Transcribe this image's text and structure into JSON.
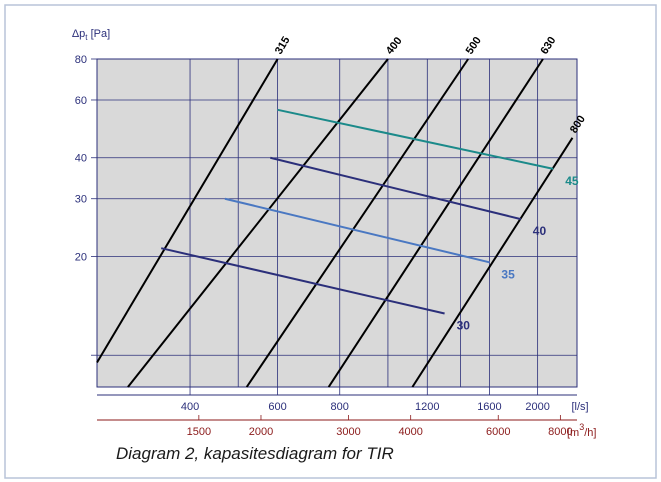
{
  "chart_data": {
    "type": "line",
    "caption": "Diagram 2, kapasitesdiagram for TIR",
    "ylabel": "Δp",
    "ylabel_sub": "t",
    "ylabel_unit": "[Pa]",
    "y_scale": "log",
    "ylim": [
      8,
      80
    ],
    "y_ticks": [
      20,
      30,
      40,
      60,
      80
    ],
    "x_scale": "log",
    "xlim": [
      260,
      2400
    ],
    "x_ticks": [
      400,
      600,
      800,
      1200,
      1600,
      2000
    ],
    "x_unit": "[l/s]",
    "x2_ticks": [
      1500,
      2000,
      3000,
      4000,
      6000,
      8000
    ],
    "x2_unit_prefix": "[m",
    "x2_unit_sup": "3",
    "x2_unit_suffix": "/h]",
    "grid": true,
    "duct_series": [
      {
        "name": "315",
        "points": [
          [
            260,
            9.5
          ],
          [
            600,
            80
          ]
        ]
      },
      {
        "name": "400",
        "points": [
          [
            300,
            8
          ],
          [
            1000,
            80
          ]
        ]
      },
      {
        "name": "500",
        "points": [
          [
            520,
            8
          ],
          [
            1450,
            80
          ]
        ]
      },
      {
        "name": "630",
        "points": [
          [
            760,
            8
          ],
          [
            2050,
            80
          ]
        ]
      },
      {
        "name": "800",
        "points": [
          [
            1120,
            8
          ],
          [
            2350,
            46
          ]
        ]
      }
    ],
    "velocity_series": [
      {
        "name": "30",
        "color": "#2b2f7a",
        "points": [
          [
            350,
            21.2
          ],
          [
            1300,
            13.4
          ]
        ]
      },
      {
        "name": "35",
        "color": "#4a78c2",
        "points": [
          [
            470,
            30
          ],
          [
            1600,
            19.2
          ]
        ]
      },
      {
        "name": "40",
        "color": "#2b2f7a",
        "points": [
          [
            580,
            40
          ],
          [
            1850,
            26
          ]
        ]
      },
      {
        "name": "45",
        "color": "#1b8a8a",
        "points": [
          [
            600,
            56
          ],
          [
            2150,
            37
          ]
        ]
      }
    ]
  }
}
